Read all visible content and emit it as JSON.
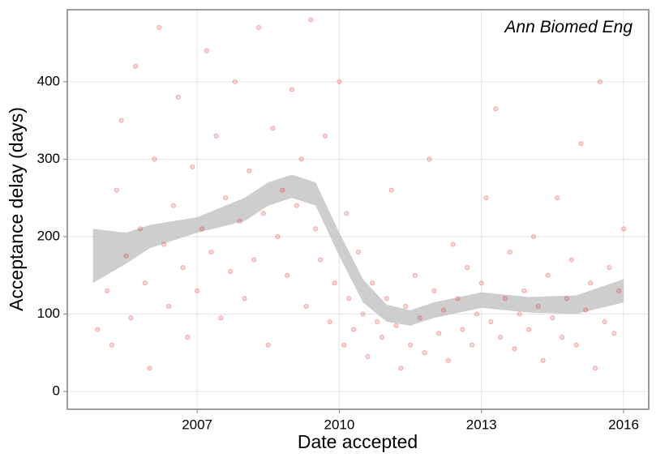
{
  "chart_data": {
    "type": "scatter",
    "annotation": "Ann Biomed Eng",
    "x_label": "Date accepted",
    "y_label": "Acceptance delay (days)",
    "xlim": [
      2004.26,
      2016.53
    ],
    "ylim": [
      -23,
      493
    ],
    "xticks": [
      2007,
      2010,
      2013,
      2016
    ],
    "yticks": [
      0,
      100,
      200,
      300,
      400
    ],
    "grid": true,
    "color": "#e41a1c",
    "x": [
      2004.9,
      2005.1,
      2005.2,
      2005.3,
      2005.4,
      2005.5,
      2005.6,
      2005.7,
      2005.8,
      2005.9,
      2006.0,
      2006.1,
      2006.2,
      2006.3,
      2006.4,
      2006.5,
      2006.6,
      2006.7,
      2006.8,
      2006.9,
      2007.0,
      2007.1,
      2007.2,
      2007.3,
      2007.4,
      2007.5,
      2007.6,
      2007.7,
      2007.8,
      2007.9,
      2008.0,
      2008.1,
      2008.2,
      2008.3,
      2008.4,
      2008.5,
      2008.6,
      2008.7,
      2008.8,
      2008.9,
      2009.0,
      2009.1,
      2009.2,
      2009.3,
      2009.4,
      2009.5,
      2009.6,
      2009.7,
      2009.8,
      2009.9,
      2010.0,
      2010.1,
      2010.15,
      2010.2,
      2010.3,
      2010.4,
      2010.5,
      2010.6,
      2010.7,
      2010.8,
      2010.9,
      2011.0,
      2011.1,
      2011.2,
      2011.3,
      2011.4,
      2011.5,
      2011.6,
      2011.7,
      2011.8,
      2011.9,
      2012.0,
      2012.1,
      2012.2,
      2012.3,
      2012.4,
      2012.5,
      2012.6,
      2012.7,
      2012.8,
      2012.9,
      2013.0,
      2013.1,
      2013.2,
      2013.3,
      2013.4,
      2013.5,
      2013.6,
      2013.7,
      2013.8,
      2013.9,
      2014.0,
      2014.1,
      2014.2,
      2014.3,
      2014.4,
      2014.5,
      2014.6,
      2014.7,
      2014.8,
      2014.9,
      2015.0,
      2015.1,
      2015.2,
      2015.3,
      2015.4,
      2015.5,
      2015.6,
      2015.7,
      2015.8,
      2015.9,
      2016.0
    ],
    "y": [
      80,
      130,
      60,
      260,
      350,
      175,
      95,
      420,
      210,
      140,
      30,
      300,
      470,
      190,
      110,
      240,
      380,
      160,
      70,
      290,
      130,
      210,
      440,
      180,
      330,
      95,
      250,
      155,
      400,
      220,
      120,
      285,
      170,
      470,
      230,
      60,
      340,
      200,
      260,
      150,
      390,
      240,
      300,
      110,
      480,
      210,
      170,
      330,
      90,
      140,
      400,
      60,
      230,
      120,
      80,
      180,
      100,
      45,
      140,
      90,
      70,
      120,
      260,
      85,
      30,
      110,
      60,
      150,
      95,
      50,
      300,
      130,
      75,
      105,
      40,
      190,
      120,
      80,
      160,
      60,
      100,
      140,
      250,
      90,
      365,
      70,
      120,
      180,
      55,
      100,
      130,
      80,
      200,
      110,
      40,
      150,
      95,
      250,
      70,
      120,
      170,
      60,
      320,
      105,
      140,
      30,
      400,
      90,
      160,
      75,
      130,
      210
    ],
    "band": {
      "x": [
        2004.8,
        2005.5,
        2006,
        2007,
        2008,
        2008.5,
        2009,
        2009.5,
        2010,
        2010.5,
        2011,
        2011.5,
        2012,
        2013,
        2014,
        2015,
        2016
      ],
      "lower": [
        140,
        165,
        185,
        205,
        220,
        240,
        250,
        240,
        175,
        115,
        90,
        85,
        95,
        108,
        102,
        100,
        115
      ],
      "upper": [
        210,
        205,
        215,
        225,
        250,
        270,
        280,
        270,
        205,
        145,
        112,
        105,
        115,
        128,
        122,
        124,
        145
      ]
    }
  }
}
